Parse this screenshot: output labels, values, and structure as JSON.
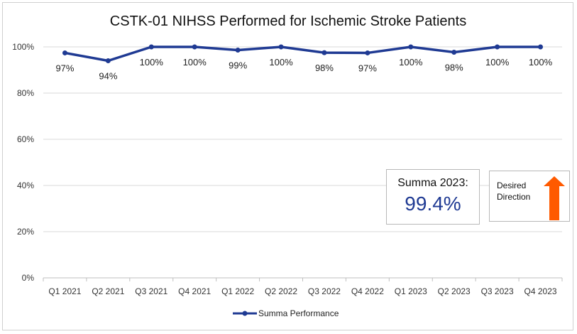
{
  "chart_data": {
    "type": "line",
    "title": "CSTK-01 NIHSS Performed for Ischemic Stroke Patients",
    "categories": [
      "Q1 2021",
      "Q2 2021",
      "Q3 2021",
      "Q4 2021",
      "Q1 2022",
      "Q2 2022",
      "Q3 2022",
      "Q4 2022",
      "Q1 2023",
      "Q2 2023",
      "Q3 2023",
      "Q4 2023"
    ],
    "series": [
      {
        "name": "Summa Performance",
        "values": [
          97.4,
          94.0,
          100,
          100,
          98.6,
          100,
          97.5,
          97.4,
          100,
          97.7,
          100,
          100
        ],
        "labels": [
          "97%",
          "94%",
          "100%",
          "100%",
          "99%",
          "100%",
          "98%",
          "97%",
          "100%",
          "98%",
          "100%",
          "100%"
        ],
        "color": "#1f3a93"
      }
    ],
    "ylim": [
      0,
      100
    ],
    "yticks": [
      0,
      20,
      40,
      60,
      80,
      100
    ],
    "ytick_labels": [
      "0%",
      "20%",
      "40%",
      "60%",
      "80%",
      "100%"
    ],
    "grid": true,
    "legend_position": "bottom"
  },
  "callouts": {
    "summa_label": "Summa 2023:",
    "summa_value": "99.4%",
    "desired_label": "Desired Direction",
    "arrow_color": "#ff5a00"
  }
}
